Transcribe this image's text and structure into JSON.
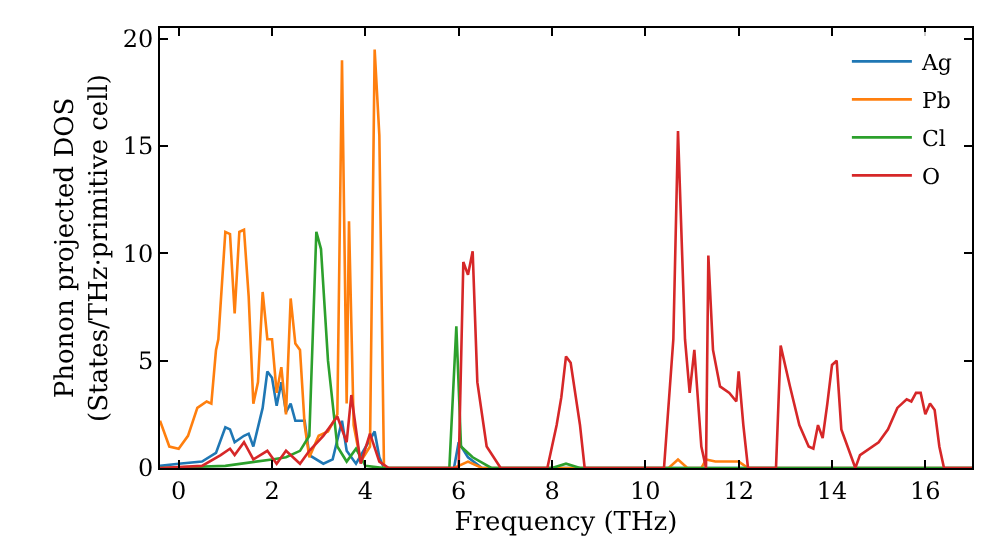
{
  "chart_data": {
    "type": "line",
    "xlabel": "Frequency (THz)",
    "ylabel": "Phonon projected DOS\n(States/THz·primitive cell)",
    "xlim": [
      -0.4,
      17
    ],
    "ylim": [
      0,
      20.5
    ],
    "xticks": [
      0,
      2,
      4,
      6,
      8,
      10,
      12,
      14,
      16
    ],
    "yticks": [
      0,
      5,
      10,
      15,
      20
    ],
    "legend": "top right",
    "marker": "none",
    "line_style": "solid",
    "series": [
      {
        "name": "Ag",
        "color": "#1f77b4",
        "x": [
          -0.4,
          0,
          0.5,
          0.8,
          1.0,
          1.1,
          1.2,
          1.4,
          1.5,
          1.6,
          1.8,
          1.9,
          2.0,
          2.1,
          2.2,
          2.3,
          2.4,
          2.5,
          2.7,
          2.8,
          3.1,
          3.3,
          3.5,
          3.6,
          3.8,
          4.2,
          4.3,
          4.4,
          5.9,
          6.0,
          6.2,
          6.5,
          17
        ],
        "values": [
          0.1,
          0.2,
          0.3,
          0.7,
          1.9,
          1.8,
          1.2,
          1.5,
          1.6,
          1.0,
          2.8,
          4.5,
          4.2,
          2.9,
          4.0,
          2.6,
          3.0,
          2.2,
          2.2,
          0.6,
          0.2,
          0.4,
          2.2,
          0.8,
          0.2,
          1.7,
          0.5,
          0,
          0,
          1.2,
          0.5,
          0,
          0
        ]
      },
      {
        "name": "Pb",
        "color": "#ff7f0e",
        "x": [
          -0.4,
          -0.2,
          0,
          0.2,
          0.4,
          0.6,
          0.7,
          0.8,
          0.85,
          1.0,
          1.1,
          1.2,
          1.3,
          1.4,
          1.5,
          1.6,
          1.7,
          1.8,
          1.9,
          2.0,
          2.1,
          2.2,
          2.3,
          2.4,
          2.5,
          2.6,
          2.7,
          2.8,
          3.0,
          3.2,
          3.4,
          3.5,
          3.6,
          3.65,
          3.75,
          3.9,
          4.1,
          4.2,
          4.3,
          4.4,
          5.9,
          6.2,
          6.5,
          10.5,
          10.7,
          10.9,
          11.2,
          11.3,
          11.5,
          12.0,
          12.2,
          17
        ],
        "values": [
          2.2,
          1.0,
          0.9,
          1.5,
          2.8,
          3.1,
          3.0,
          5.5,
          6.0,
          11.0,
          10.9,
          7.2,
          11.0,
          11.1,
          8.0,
          3.0,
          4.0,
          8.2,
          6.0,
          6.0,
          3.5,
          4.7,
          2.5,
          7.9,
          5.8,
          5.5,
          2.0,
          0.5,
          1.5,
          1.7,
          2.5,
          19.0,
          3.0,
          11.5,
          2.0,
          0.3,
          1.0,
          19.5,
          15.5,
          0,
          0,
          0.3,
          0,
          0,
          0.4,
          0,
          0,
          0.4,
          0.3,
          0.3,
          0,
          0
        ]
      },
      {
        "name": "Cl",
        "color": "#2ca02c",
        "x": [
          -0.4,
          1.0,
          2.0,
          2.3,
          2.6,
          2.8,
          2.95,
          3.05,
          3.2,
          3.4,
          3.6,
          3.8,
          4.0,
          4.4,
          5.8,
          5.95,
          6.05,
          6.3,
          6.7,
          8.0,
          8.3,
          8.6,
          17
        ],
        "values": [
          0,
          0.1,
          0.4,
          0.5,
          0.8,
          1.5,
          11.0,
          10.2,
          5.0,
          1.0,
          0.3,
          0.9,
          0.1,
          0,
          0,
          6.6,
          1.0,
          0.5,
          0,
          0,
          0.2,
          0,
          0
        ]
      },
      {
        "name": "O",
        "color": "#d62728",
        "x": [
          -0.4,
          0.5,
          0.9,
          1.1,
          1.2,
          1.4,
          1.6,
          1.9,
          2.1,
          2.3,
          2.6,
          2.8,
          3.1,
          3.4,
          3.6,
          3.7,
          3.9,
          4.1,
          4.3,
          4.5,
          6.0,
          6.1,
          6.2,
          6.3,
          6.4,
          6.6,
          6.9,
          7.9,
          8.1,
          8.2,
          8.3,
          8.4,
          8.6,
          8.7,
          10.4,
          10.6,
          10.7,
          10.85,
          10.95,
          11.05,
          11.2,
          11.3,
          11.35,
          11.45,
          11.6,
          11.8,
          11.95,
          12.0,
          12.1,
          12.2,
          12.8,
          12.9,
          13.1,
          13.3,
          13.5,
          13.6,
          13.7,
          13.8,
          13.9,
          14.0,
          14.1,
          14.2,
          14.3,
          14.5,
          14.6,
          15.0,
          15.2,
          15.4,
          15.6,
          15.7,
          15.8,
          15.9,
          16.0,
          16.1,
          16.2,
          16.3,
          16.4,
          17
        ],
        "values": [
          0,
          0.1,
          0.6,
          0.9,
          0.6,
          1.2,
          0.4,
          0.8,
          0.2,
          0.8,
          0.2,
          0.8,
          1.5,
          2.4,
          1.2,
          3.4,
          0.2,
          1.6,
          0.3,
          0,
          0,
          9.6,
          9.0,
          10.1,
          4.0,
          1.0,
          0,
          0,
          2.0,
          3.3,
          5.2,
          4.9,
          2.0,
          0,
          0,
          6.0,
          15.7,
          6.0,
          3.5,
          5.5,
          1.0,
          0,
          9.9,
          5.5,
          3.8,
          3.5,
          3.1,
          4.5,
          2.0,
          0,
          0,
          5.7,
          3.8,
          2.0,
          1.0,
          0.9,
          2.0,
          1.4,
          3.0,
          4.8,
          5.0,
          1.8,
          1.2,
          0,
          0.6,
          1.2,
          1.8,
          2.8,
          3.2,
          3.1,
          3.5,
          3.5,
          2.5,
          3.0,
          2.7,
          1.0,
          0,
          0
        ]
      }
    ]
  }
}
